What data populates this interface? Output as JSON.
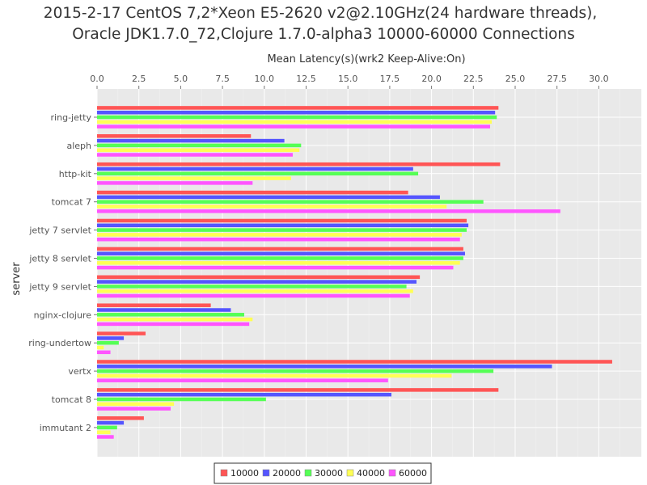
{
  "chart_data": {
    "type": "bar",
    "orientation": "horizontal",
    "title_lines": [
      "2015-2-17 CentOS 7,2*Xeon E5-2620 v2@2.10GHz(24 hardware threads),",
      "Oracle JDK1.7.0_72,Clojure 1.7.0-alpha3 10000-60000 Connections"
    ],
    "xlabel": "Mean Latency(s)(wrk2 Keep-Alive:On)",
    "ylabel": "server",
    "x_axis_position": "top",
    "xlim": [
      0,
      32.5
    ],
    "x_ticks": [
      "0.0",
      "2.5",
      "5.0",
      "7.5",
      "10.0",
      "12.5",
      "15.0",
      "17.5",
      "20.0",
      "22.5",
      "25.0",
      "27.5",
      "30.0"
    ],
    "grid": true,
    "legend_position": "bottom",
    "categories": [
      "ring-jetty",
      "aleph",
      "http-kit",
      "tomcat 7",
      "jetty 7 servlet",
      "jetty 8 servlet",
      "jetty 9 servlet",
      "nginx-clojure",
      "ring-undertow",
      "vertx",
      "tomcat 8",
      "immutant 2"
    ],
    "series": [
      {
        "name": "10000",
        "color": "#ff5555",
        "values": [
          24.0,
          9.2,
          24.1,
          18.6,
          22.1,
          21.9,
          19.3,
          6.8,
          2.9,
          30.8,
          24.0,
          2.8
        ]
      },
      {
        "name": "20000",
        "color": "#5555ff",
        "values": [
          23.8,
          11.2,
          18.9,
          20.5,
          22.2,
          22.0,
          19.1,
          8.0,
          1.6,
          27.2,
          17.6,
          1.6
        ]
      },
      {
        "name": "30000",
        "color": "#55ff55",
        "values": [
          23.9,
          12.2,
          19.2,
          23.1,
          22.1,
          21.9,
          18.5,
          8.8,
          1.3,
          23.7,
          10.1,
          1.2
        ]
      },
      {
        "name": "40000",
        "color": "#ffff55",
        "values": [
          23.6,
          12.1,
          11.6,
          20.9,
          21.8,
          21.7,
          18.9,
          9.3,
          0.4,
          21.2,
          4.6,
          0.8
        ]
      },
      {
        "name": "60000",
        "color": "#ff55ff",
        "values": [
          23.5,
          11.7,
          9.3,
          27.7,
          21.7,
          21.3,
          18.7,
          9.1,
          0.8,
          17.4,
          4.4,
          1.0
        ]
      }
    ]
  }
}
